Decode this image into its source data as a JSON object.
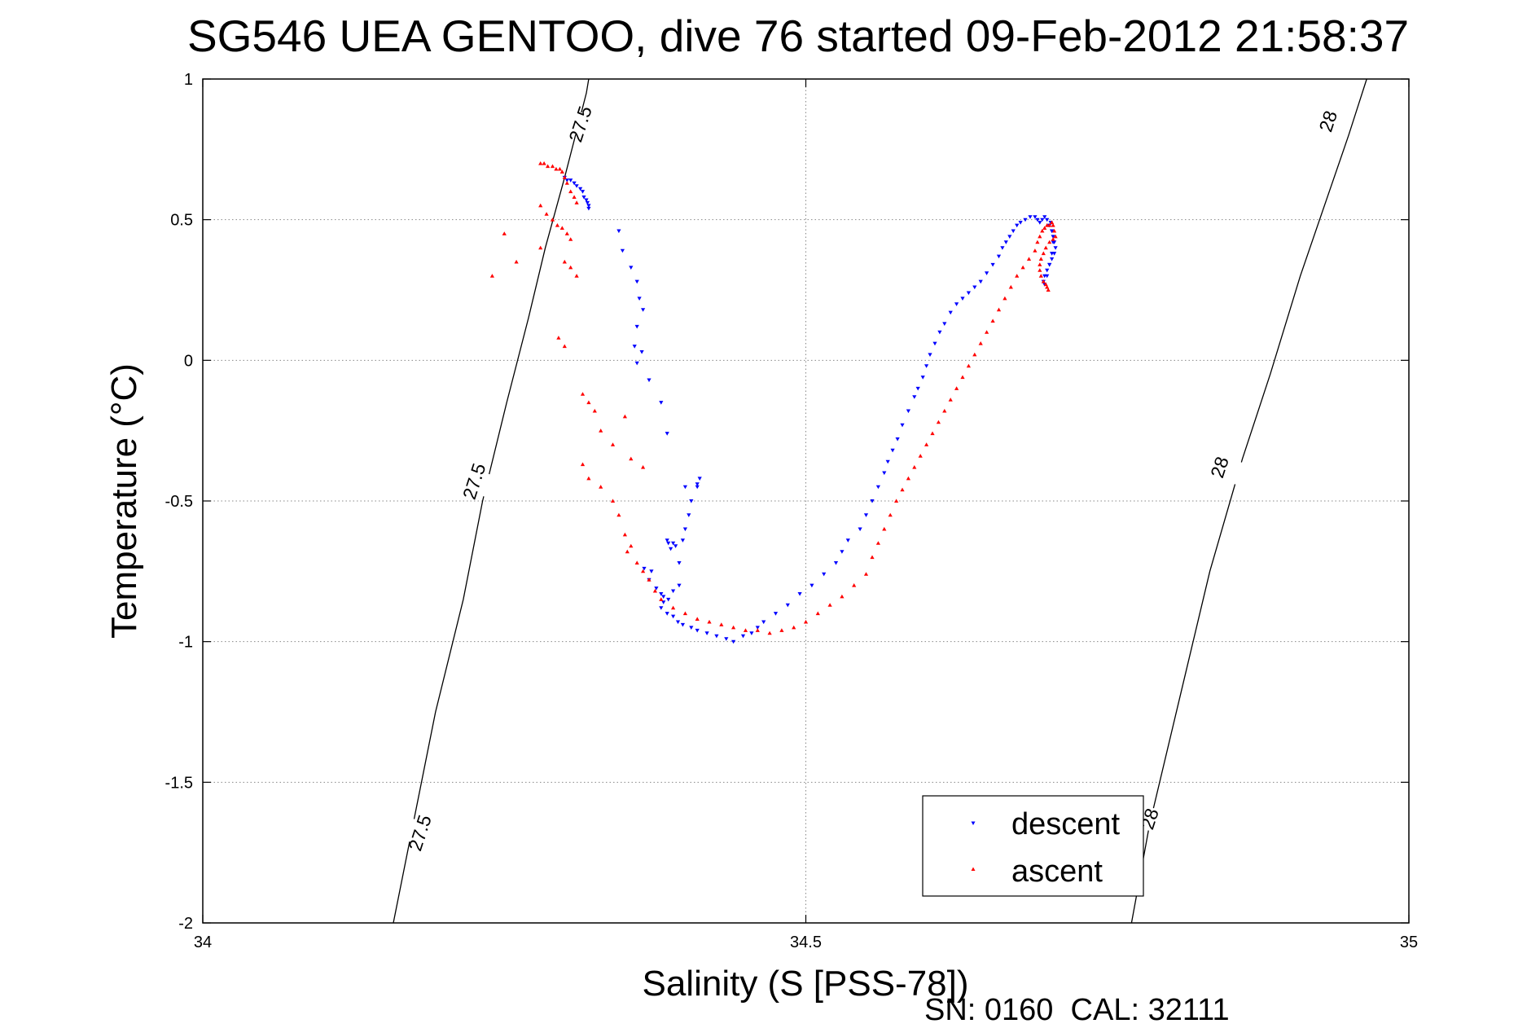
{
  "chart_data": {
    "type": "scatter",
    "title": "SG546 UEA GENTOO, dive 76 started 09-Feb-2012 21:58:37",
    "xlabel": "Salinity (S [PSS-78])",
    "ylabel": "Temperature (°C)",
    "xlim": [
      34,
      35
    ],
    "ylim": [
      -2,
      1
    ],
    "x_ticks": [
      34,
      34.5,
      35
    ],
    "x_tick_labels": [
      "34",
      "34.5",
      "35"
    ],
    "y_ticks": [
      1,
      0.5,
      0,
      -0.5,
      -1,
      -1.5,
      -2
    ],
    "y_tick_labels": [
      "1",
      "0.5",
      "0",
      "-0.5",
      "-1",
      "-1.5",
      "-2"
    ],
    "grid": true,
    "legend_position": "bottom-right",
    "footer_text": "SN: 0160  CAL: 32111",
    "density_contours": [
      {
        "level": "27.5",
        "points": [
          [
            34.158,
            -2.0
          ],
          [
            34.172,
            -1.7
          ],
          [
            34.193,
            -1.25
          ],
          [
            34.216,
            -0.85
          ],
          [
            34.232,
            -0.5
          ],
          [
            34.252,
            -0.15
          ],
          [
            34.27,
            0.15
          ],
          [
            34.284,
            0.4
          ],
          [
            34.3,
            0.65
          ],
          [
            34.318,
            0.95
          ],
          [
            34.32,
            1.0
          ]
        ],
        "labels": [
          {
            "x": 34.18,
            "y": -1.68,
            "text": "27.5"
          },
          {
            "x": 34.225,
            "y": -0.43,
            "text": "27.5"
          },
          {
            "x": 34.313,
            "y": 0.84,
            "text": "27.5"
          }
        ]
      },
      {
        "level": "28",
        "points": [
          [
            34.77,
            -2.0
          ],
          [
            34.785,
            -1.65
          ],
          [
            34.81,
            -1.2
          ],
          [
            34.835,
            -0.75
          ],
          [
            34.862,
            -0.35
          ],
          [
            34.885,
            -0.05
          ],
          [
            34.91,
            0.3
          ],
          [
            34.93,
            0.55
          ],
          [
            34.95,
            0.8
          ],
          [
            34.965,
            1.0
          ]
        ],
        "labels": [
          {
            "x": 34.785,
            "y": -1.63,
            "text": "28"
          },
          {
            "x": 34.843,
            "y": -0.38,
            "text": "28"
          },
          {
            "x": 34.933,
            "y": 0.85,
            "text": "28"
          }
        ]
      }
    ],
    "series": [
      {
        "name": "descent",
        "color": "#0000ff",
        "marker": "triangle-down",
        "x": [
          34.3,
          34.302,
          34.305,
          34.308,
          34.31,
          34.313,
          34.315,
          34.316,
          34.318,
          34.319,
          34.32,
          34.32,
          34.345,
          34.348,
          34.355,
          34.36,
          34.362,
          34.365,
          34.36,
          34.358,
          34.364,
          34.36,
          34.37,
          34.38,
          34.385,
          34.4,
          34.41,
          34.412,
          34.41,
          34.405,
          34.403,
          34.4,
          34.398,
          34.392,
          34.388,
          34.386,
          34.385,
          34.39,
          34.395,
          34.395,
          34.39,
          34.386,
          34.382,
          34.376,
          34.37,
          34.366,
          34.372,
          34.38,
          34.382,
          34.38,
          34.385,
          34.39,
          34.394,
          34.398,
          34.405,
          34.41,
          34.418,
          34.426,
          34.434,
          34.44,
          34.448,
          34.455,
          34.46,
          34.465,
          34.475,
          34.485,
          34.495,
          34.505,
          34.515,
          34.525,
          34.53,
          34.535,
          34.545,
          34.55,
          34.555,
          34.56,
          34.565,
          34.568,
          34.572,
          34.576,
          34.58,
          34.585,
          34.59,
          34.593,
          34.597,
          34.6,
          34.603,
          34.607,
          34.611,
          34.615,
          34.62,
          34.625,
          34.63,
          34.635,
          34.64,
          34.645,
          34.65,
          34.655,
          34.66,
          34.663,
          34.666,
          34.669,
          34.672,
          34.675,
          34.678,
          34.682,
          34.686,
          34.69,
          34.692,
          34.694,
          34.696,
          34.698,
          34.7,
          34.702,
          34.704,
          34.705,
          34.706,
          34.707,
          34.706,
          34.704,
          34.702,
          34.7,
          34.698,
          34.697,
          34.698,
          34.7,
          34.702,
          34.704,
          34.705,
          34.704,
          34.703
        ],
        "y": [
          0.65,
          0.64,
          0.64,
          0.63,
          0.62,
          0.61,
          0.6,
          0.58,
          0.57,
          0.56,
          0.55,
          0.54,
          0.46,
          0.39,
          0.33,
          0.28,
          0.22,
          0.18,
          0.12,
          0.05,
          0.03,
          -0.01,
          -0.07,
          -0.15,
          -0.26,
          -0.45,
          -0.44,
          -0.42,
          -0.45,
          -0.5,
          -0.55,
          -0.6,
          -0.64,
          -0.66,
          -0.67,
          -0.65,
          -0.64,
          -0.65,
          -0.72,
          -0.8,
          -0.82,
          -0.85,
          -0.84,
          -0.81,
          -0.78,
          -0.74,
          -0.75,
          -0.83,
          -0.86,
          -0.88,
          -0.9,
          -0.91,
          -0.93,
          -0.94,
          -0.95,
          -0.96,
          -0.97,
          -0.98,
          -0.99,
          -1.0,
          -0.98,
          -0.97,
          -0.95,
          -0.93,
          -0.9,
          -0.87,
          -0.83,
          -0.8,
          -0.76,
          -0.72,
          -0.68,
          -0.64,
          -0.6,
          -0.55,
          -0.5,
          -0.45,
          -0.4,
          -0.36,
          -0.32,
          -0.28,
          -0.23,
          -0.18,
          -0.13,
          -0.1,
          -0.06,
          -0.02,
          0.02,
          0.06,
          0.1,
          0.13,
          0.17,
          0.2,
          0.22,
          0.24,
          0.26,
          0.28,
          0.31,
          0.34,
          0.37,
          0.4,
          0.42,
          0.44,
          0.46,
          0.48,
          0.49,
          0.5,
          0.51,
          0.51,
          0.5,
          0.49,
          0.5,
          0.51,
          0.5,
          0.48,
          0.46,
          0.44,
          0.42,
          0.4,
          0.38,
          0.36,
          0.34,
          0.32,
          0.3,
          0.28,
          0.27,
          0.3,
          0.34,
          0.38,
          0.42,
          0.46,
          0.49
        ]
      },
      {
        "name": "ascent",
        "color": "#ff0000",
        "marker": "triangle-up",
        "x": [
          34.28,
          34.283,
          34.286,
          34.29,
          34.293,
          34.296,
          34.298,
          34.3,
          34.302,
          34.305,
          34.308,
          34.31,
          34.28,
          34.285,
          34.29,
          34.294,
          34.298,
          34.302,
          34.305,
          34.28,
          34.26,
          34.25,
          34.24,
          34.3,
          34.305,
          34.31,
          34.295,
          34.3,
          34.315,
          34.32,
          34.325,
          34.33,
          34.34,
          34.35,
          34.355,
          34.365,
          34.315,
          34.32,
          34.33,
          34.34,
          34.345,
          34.35,
          34.352,
          34.355,
          34.36,
          34.365,
          34.37,
          34.375,
          34.38,
          34.39,
          34.4,
          34.41,
          34.42,
          34.43,
          34.44,
          34.45,
          34.46,
          34.47,
          34.48,
          34.49,
          34.5,
          34.51,
          34.52,
          34.53,
          34.54,
          34.55,
          34.555,
          34.56,
          34.565,
          34.57,
          34.575,
          34.58,
          34.585,
          34.59,
          34.595,
          34.6,
          34.605,
          34.61,
          34.615,
          34.62,
          34.625,
          34.63,
          34.635,
          34.64,
          34.645,
          34.65,
          34.655,
          34.66,
          34.665,
          34.67,
          34.675,
          34.68,
          34.685,
          34.69,
          34.692,
          34.694,
          34.696,
          34.698,
          34.7,
          34.702,
          34.704,
          34.705,
          34.706,
          34.707,
          34.705,
          34.702,
          34.699,
          34.697,
          34.695,
          34.694,
          34.694,
          34.695,
          34.697,
          34.699,
          34.7,
          34.701
        ],
        "y": [
          0.7,
          0.7,
          0.69,
          0.69,
          0.68,
          0.68,
          0.67,
          0.65,
          0.63,
          0.6,
          0.58,
          0.56,
          0.55,
          0.52,
          0.5,
          0.48,
          0.47,
          0.45,
          0.43,
          0.4,
          0.35,
          0.45,
          0.3,
          0.35,
          0.33,
          0.3,
          0.08,
          0.05,
          -0.12,
          -0.15,
          -0.18,
          -0.25,
          -0.3,
          -0.2,
          -0.35,
          -0.38,
          -0.37,
          -0.42,
          -0.45,
          -0.5,
          -0.55,
          -0.62,
          -0.68,
          -0.66,
          -0.72,
          -0.75,
          -0.78,
          -0.82,
          -0.85,
          -0.88,
          -0.9,
          -0.92,
          -0.93,
          -0.94,
          -0.95,
          -0.96,
          -0.96,
          -0.97,
          -0.96,
          -0.95,
          -0.93,
          -0.9,
          -0.87,
          -0.84,
          -0.8,
          -0.76,
          -0.7,
          -0.65,
          -0.6,
          -0.55,
          -0.5,
          -0.46,
          -0.42,
          -0.38,
          -0.34,
          -0.3,
          -0.26,
          -0.22,
          -0.18,
          -0.14,
          -0.1,
          -0.06,
          -0.02,
          0.02,
          0.06,
          0.1,
          0.14,
          0.18,
          0.22,
          0.26,
          0.3,
          0.33,
          0.36,
          0.39,
          0.42,
          0.44,
          0.46,
          0.47,
          0.48,
          0.48,
          0.49,
          0.48,
          0.46,
          0.44,
          0.43,
          0.42,
          0.4,
          0.38,
          0.36,
          0.34,
          0.32,
          0.3,
          0.28,
          0.27,
          0.26,
          0.25
        ]
      }
    ]
  }
}
